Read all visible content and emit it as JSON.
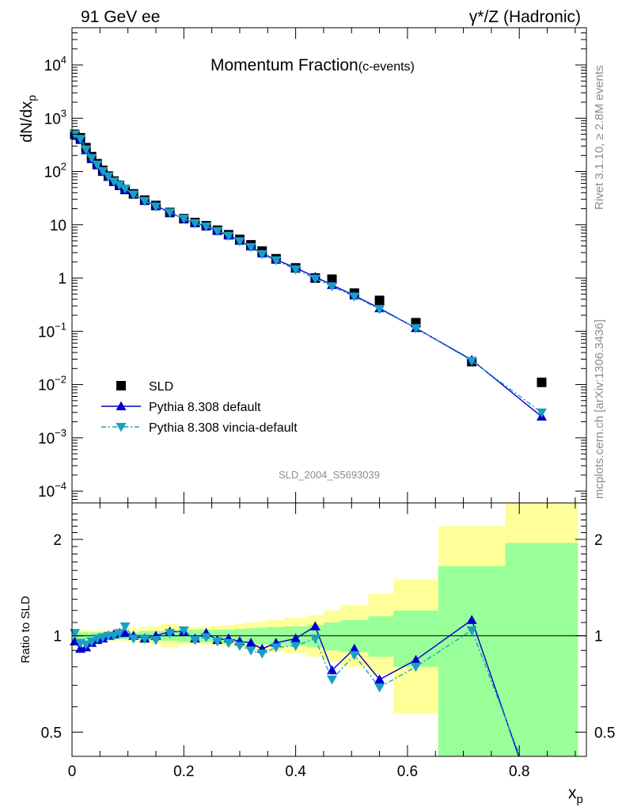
{
  "header": {
    "left": "91 GeV ee",
    "right": "γ*/Z (Hadronic)"
  },
  "side_text": {
    "rivet": "Rivet 3.1.10, ≥ 2.8M events",
    "mcplots": "mcplots.cern.ch [arXiv:1306.3436]"
  },
  "chart_data": [
    {
      "type": "scatter",
      "title": "Momentum Fraction",
      "subtitle": "(c-events)",
      "watermark": "SLD_2004_S5693039",
      "ylabel": "dN/dx",
      "ylabel_sub": "p",
      "yscale": "log",
      "ylim": [
        6e-05,
        50000
      ],
      "xlim": [
        0,
        0.92
      ],
      "yticks": [
        {
          "v": 10000,
          "mant": "10",
          "exp": "4"
        },
        {
          "v": 1000,
          "mant": "10",
          "exp": "3"
        },
        {
          "v": 100,
          "mant": "10",
          "exp": "2"
        },
        {
          "v": 10,
          "mant": "10",
          "exp": ""
        },
        {
          "v": 1,
          "mant": "1",
          "exp": ""
        },
        {
          "v": 0.1,
          "mant": "10",
          "exp": "−1"
        },
        {
          "v": 0.01,
          "mant": "10",
          "exp": "−2"
        },
        {
          "v": 0.001,
          "mant": "10",
          "exp": "−3"
        },
        {
          "v": 0.0001,
          "mant": "10",
          "exp": "−4"
        }
      ],
      "legend_position": "bottom-left",
      "series": [
        {
          "name": "SLD",
          "style": "square",
          "color": "#000000",
          "x": [
            0.005,
            0.015,
            0.025,
            0.035,
            0.045,
            0.055,
            0.065,
            0.075,
            0.085,
            0.095,
            0.11,
            0.13,
            0.15,
            0.175,
            0.2,
            0.22,
            0.24,
            0.26,
            0.28,
            0.3,
            0.32,
            0.34,
            0.365,
            0.4,
            0.435,
            0.465,
            0.505,
            0.55,
            0.615,
            0.715,
            0.84
          ],
          "y": [
            500,
            430,
            280,
            190,
            140,
            105,
            82,
            66,
            55,
            46,
            38,
            29,
            23,
            17,
            13,
            11,
            9.6,
            7.9,
            6.5,
            5.3,
            4.2,
            3.2,
            2.3,
            1.55,
            1.0,
            0.95,
            0.52,
            0.38,
            0.145,
            0.027,
            0.011
          ]
        },
        {
          "name": "Pythia 8.308 default",
          "style": "triangle-up",
          "color": "#0000cc",
          "x": [
            0.005,
            0.015,
            0.025,
            0.035,
            0.045,
            0.055,
            0.065,
            0.075,
            0.085,
            0.095,
            0.11,
            0.13,
            0.15,
            0.175,
            0.2,
            0.22,
            0.24,
            0.26,
            0.28,
            0.3,
            0.32,
            0.34,
            0.365,
            0.4,
            0.435,
            0.465,
            0.505,
            0.55,
            0.615,
            0.715,
            0.84
          ],
          "y": [
            480,
            390,
            250,
            170,
            130,
            98,
            79,
            63,
            55,
            46,
            38,
            28,
            23,
            17,
            13,
            10.8,
            9.5,
            7.7,
            6.3,
            5.0,
            3.9,
            2.9,
            2.2,
            1.55,
            1.05,
            0.74,
            0.47,
            0.27,
            0.115,
            0.029,
            0.0025
          ]
        },
        {
          "name": "Pythia 8.308 vincia-default",
          "style": "triangle-down",
          "color": "#1a9fc4",
          "x": [
            0.005,
            0.015,
            0.025,
            0.035,
            0.045,
            0.055,
            0.065,
            0.075,
            0.085,
            0.095,
            0.11,
            0.13,
            0.15,
            0.175,
            0.2,
            0.22,
            0.24,
            0.26,
            0.28,
            0.3,
            0.32,
            0.34,
            0.365,
            0.4,
            0.435,
            0.465,
            0.505,
            0.55,
            0.615,
            0.715,
            0.84
          ],
          "y": [
            510,
            410,
            260,
            180,
            135,
            102,
            81,
            65,
            56,
            48,
            37,
            28,
            22,
            17,
            13,
            10.7,
            9.3,
            7.6,
            6.2,
            4.9,
            3.8,
            2.8,
            2.15,
            1.45,
            0.97,
            0.7,
            0.45,
            0.26,
            0.115,
            0.028,
            0.003
          ]
        }
      ]
    },
    {
      "type": "line",
      "ylabel": "Ratio to SLD",
      "xlabel": "x",
      "xlabel_sub": "p",
      "yscale": "log",
      "ylim": [
        0.42,
        2.6
      ],
      "xlim": [
        0,
        0.92
      ],
      "reference_line": 1,
      "yticks": [
        0.5,
        1,
        2
      ],
      "xticks": [
        0,
        0.2,
        0.4,
        0.6,
        0.8
      ],
      "bands": {
        "edges": [
          0,
          0.01,
          0.02,
          0.03,
          0.04,
          0.05,
          0.06,
          0.07,
          0.08,
          0.09,
          0.1,
          0.12,
          0.14,
          0.16,
          0.19,
          0.21,
          0.23,
          0.25,
          0.27,
          0.29,
          0.31,
          0.33,
          0.35,
          0.38,
          0.42,
          0.45,
          0.48,
          0.53,
          0.575,
          0.655,
          0.775,
          0.905
        ],
        "inner_lo": [
          0.97,
          0.975,
          0.975,
          0.975,
          0.975,
          0.975,
          0.975,
          0.975,
          0.975,
          0.975,
          0.975,
          0.965,
          0.965,
          0.965,
          0.955,
          0.955,
          0.955,
          0.955,
          0.955,
          0.95,
          0.945,
          0.94,
          0.935,
          0.93,
          0.92,
          0.9,
          0.89,
          0.86,
          0.8,
          0.37,
          0.37
        ],
        "inner_hi": [
          1.03,
          1.025,
          1.025,
          1.025,
          1.025,
          1.025,
          1.025,
          1.025,
          1.025,
          1.025,
          1.025,
          1.035,
          1.035,
          1.035,
          1.045,
          1.045,
          1.045,
          1.045,
          1.045,
          1.05,
          1.055,
          1.06,
          1.065,
          1.07,
          1.08,
          1.1,
          1.12,
          1.15,
          1.2,
          1.65,
          1.95
        ],
        "outer_lo": [
          0.955,
          0.96,
          0.965,
          0.965,
          0.965,
          0.965,
          0.965,
          0.965,
          0.965,
          0.96,
          0.955,
          0.945,
          0.94,
          0.92,
          0.935,
          0.94,
          0.935,
          0.93,
          0.925,
          0.92,
          0.91,
          0.9,
          0.89,
          0.88,
          0.86,
          0.83,
          0.8,
          0.76,
          0.57,
          0.37,
          0.37
        ],
        "outer_hi": [
          1.05,
          1.045,
          1.04,
          1.04,
          1.04,
          1.04,
          1.04,
          1.04,
          1.045,
          1.05,
          1.055,
          1.065,
          1.07,
          1.09,
          1.07,
          1.065,
          1.07,
          1.075,
          1.08,
          1.09,
          1.1,
          1.11,
          1.12,
          1.14,
          1.16,
          1.2,
          1.25,
          1.35,
          1.5,
          2.2,
          2.6
        ]
      },
      "series": [
        {
          "name": "Pythia 8.308 default",
          "style": "triangle-up",
          "color": "#0000cc",
          "x": [
            0.005,
            0.015,
            0.025,
            0.035,
            0.045,
            0.055,
            0.065,
            0.075,
            0.085,
            0.095,
            0.11,
            0.13,
            0.15,
            0.175,
            0.2,
            0.22,
            0.24,
            0.26,
            0.28,
            0.3,
            0.32,
            0.34,
            0.365,
            0.4,
            0.435,
            0.465,
            0.505,
            0.55,
            0.615,
            0.715,
            0.84
          ],
          "y": [
            0.96,
            0.91,
            0.92,
            0.95,
            0.97,
            0.98,
            1.0,
            1.01,
            1.02,
            1.02,
            1.0,
            0.98,
            1.0,
            1.03,
            1.03,
            0.98,
            1.02,
            0.97,
            0.98,
            0.96,
            0.95,
            0.91,
            0.95,
            0.98,
            1.07,
            0.78,
            0.91,
            0.73,
            0.84,
            1.12,
            0.26
          ]
        },
        {
          "name": "Pythia 8.308 vincia-default",
          "style": "triangle-down",
          "color": "#1a9fc4",
          "x": [
            0.005,
            0.015,
            0.025,
            0.035,
            0.045,
            0.055,
            0.065,
            0.075,
            0.085,
            0.095,
            0.11,
            0.13,
            0.15,
            0.175,
            0.2,
            0.22,
            0.24,
            0.26,
            0.28,
            0.3,
            0.32,
            0.34,
            0.365,
            0.4,
            0.435,
            0.465,
            0.505,
            0.55,
            0.615,
            0.715,
            0.84
          ],
          "y": [
            1.02,
            0.95,
            0.94,
            0.96,
            0.98,
            0.99,
            1.0,
            1.0,
            1.02,
            1.07,
            0.98,
            0.98,
            0.97,
            1.02,
            1.04,
            0.97,
            0.99,
            0.96,
            0.95,
            0.93,
            0.9,
            0.88,
            0.92,
            0.93,
            0.98,
            0.73,
            0.87,
            0.69,
            0.8,
            1.04,
            0.28
          ]
        }
      ]
    }
  ]
}
